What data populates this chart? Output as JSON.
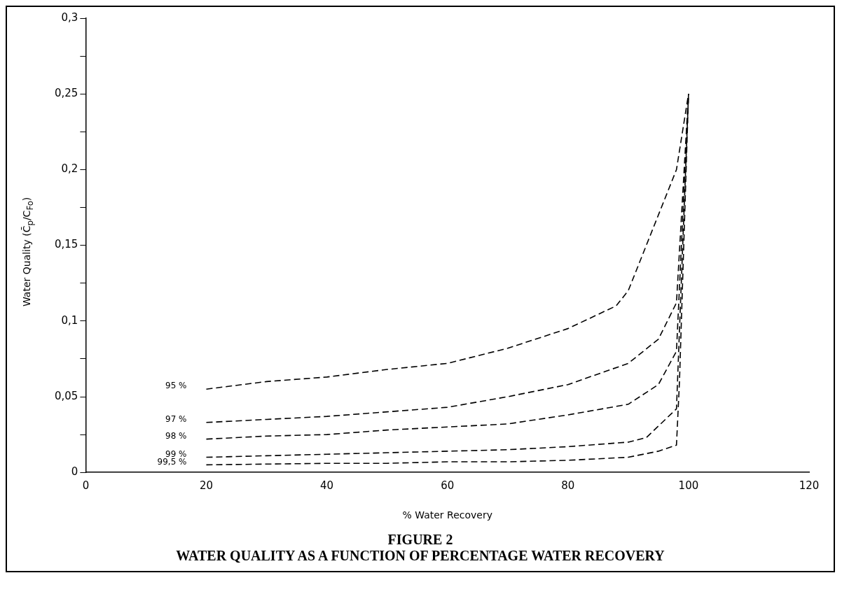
{
  "chart_data": {
    "type": "line",
    "title": "FIGURE 2",
    "subtitle": "WATER QUALITY AS A FUNCTION OF PERCENTAGE WATER RECOVERY",
    "xlabel": "% Water Recovery",
    "ylabel": "Water Quality (C̄$_{p}$/C$_{Fo}$)",
    "xlim": [
      0,
      120
    ],
    "xticks": [
      0,
      20,
      40,
      60,
      80,
      100,
      120
    ],
    "ylim": [
      0,
      0.3
    ],
    "yticks": [
      0,
      {
        "value": 0.025,
        "label": null
      },
      {
        "value": 0.05,
        "label": "0,05"
      },
      {
        "value": 0.075,
        "label": null
      },
      {
        "value": 0.1,
        "label": "0,1"
      },
      {
        "value": 0.125,
        "label": null
      },
      {
        "value": 0.15,
        "label": "0,15"
      },
      {
        "value": 0.175,
        "label": null
      },
      {
        "value": 0.2,
        "label": "0,2"
      },
      {
        "value": 0.225,
        "label": null
      },
      {
        "value": 0.25,
        "label": "0,25"
      },
      {
        "value": 0.275,
        "label": null
      },
      {
        "value": 0.3,
        "label": "0,3"
      }
    ],
    "grid": false,
    "legend": false,
    "marker": "none",
    "line_style": "dashed",
    "series": [
      {
        "name": "95 %",
        "color": "#000000",
        "x": [
          20,
          30,
          40,
          50,
          60,
          70,
          80,
          88,
          90,
          98,
          100
        ],
        "values": [
          0.055,
          0.06,
          0.063,
          0.068,
          0.072,
          0.082,
          0.095,
          0.11,
          0.12,
          0.2,
          0.25
        ]
      },
      {
        "name": "97 %",
        "color": "#000000",
        "x": [
          20,
          30,
          40,
          50,
          60,
          70,
          80,
          90,
          95,
          98,
          100
        ],
        "values": [
          0.033,
          0.035,
          0.037,
          0.04,
          0.043,
          0.05,
          0.058,
          0.072,
          0.088,
          0.112,
          0.25
        ]
      },
      {
        "name": "98 %",
        "color": "#000000",
        "x": [
          20,
          30,
          40,
          50,
          60,
          70,
          80,
          90,
          95,
          98,
          100
        ],
        "values": [
          0.022,
          0.024,
          0.025,
          0.028,
          0.03,
          0.032,
          0.038,
          0.045,
          0.058,
          0.08,
          0.25
        ]
      },
      {
        "name": "99 %",
        "color": "#000000",
        "x": [
          20,
          30,
          40,
          50,
          60,
          70,
          80,
          90,
          93,
          98,
          100
        ],
        "values": [
          0.01,
          0.011,
          0.012,
          0.013,
          0.014,
          0.015,
          0.017,
          0.02,
          0.023,
          0.042,
          0.25
        ]
      },
      {
        "name": "99,5 %",
        "color": "#000000",
        "x": [
          20,
          40,
          50,
          60,
          70,
          80,
          90,
          95,
          98,
          98.5,
          100
        ],
        "values": [
          0.005,
          0.006,
          0.006,
          0.007,
          0.007,
          0.008,
          0.01,
          0.014,
          0.018,
          0.06,
          0.25
        ]
      }
    ]
  }
}
